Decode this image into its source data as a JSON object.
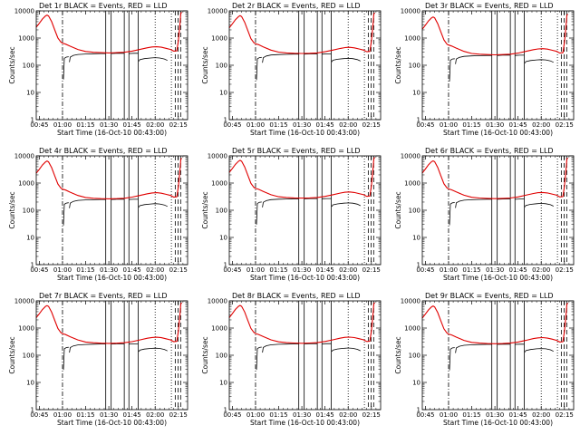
{
  "chart_data": {
    "type": "line",
    "layout": {
      "rows": 3,
      "cols": 3
    },
    "xlabel": "Start Time (16-Oct-10 00:43:00)",
    "ylabel": "Counts/sec",
    "x_tick_labels": [
      "00:45",
      "01:00",
      "01:15",
      "01:30",
      "01:45",
      "02:00",
      "02:15"
    ],
    "x_tick_minutes": [
      45,
      60,
      75,
      90,
      105,
      120,
      135
    ],
    "xlim_minutes": [
      43,
      141
    ],
    "y_scale": "log",
    "ylim": [
      1,
      10000
    ],
    "y_tick_labels": [
      "1",
      "10",
      "100",
      "1000",
      "10000"
    ],
    "vertical_markers": {
      "dash_dot": [
        60
      ],
      "solid": [
        88,
        91.5,
        100,
        103,
        109
      ],
      "dotted": [
        120,
        130.5
      ],
      "long_dash": [
        133,
        134.8,
        136.5
      ]
    },
    "panels": [
      {
        "title": "Det 1r BLACK = Events, RED = LLD",
        "scale": 1.0
      },
      {
        "title": "Det 2r BLACK = Events, RED = LLD",
        "scale": 0.95
      },
      {
        "title": "Det 3r BLACK = Events, RED = LLD",
        "scale": 0.85
      },
      {
        "title": "Det 4r BLACK = Events, RED = LLD",
        "scale": 0.92
      },
      {
        "title": "Det 5r BLACK = Events, RED = LLD",
        "scale": 0.98
      },
      {
        "title": "Det 6r BLACK = Events, RED = LLD",
        "scale": 0.94
      },
      {
        "title": "Det 7r BLACK = Events, RED = LLD",
        "scale": 0.96
      },
      {
        "title": "Det 8r BLACK = Events, RED = LLD",
        "scale": 0.97
      },
      {
        "title": "Det 9r BLACK = Events, RED = LLD",
        "scale": 0.93
      }
    ],
    "series": [
      {
        "name": "BLACK = Events",
        "color": "#000000",
        "segments": [
          [
            [
              60.6,
              30
            ],
            [
              61.2,
              180
            ],
            [
              62.5,
              200
            ],
            [
              64,
              205
            ]
          ],
          [
            [
              64.5,
              130
            ],
            [
              65,
              200
            ],
            [
              67,
              230
            ],
            [
              70,
              250
            ],
            [
              75,
              260
            ],
            [
              80,
              265
            ],
            [
              85,
              270
            ],
            [
              88,
              270
            ]
          ],
          [
            [
              91.5,
              270
            ],
            [
              95,
              275
            ],
            [
              100,
              275
            ]
          ],
          [
            [
              103,
              270
            ],
            [
              106,
              275
            ],
            [
              109,
              275
            ]
          ],
          [
            [
              109.5,
              140
            ],
            [
              110,
              160
            ],
            [
              113,
              175
            ],
            [
              117,
              185
            ],
            [
              120,
              190
            ],
            [
              123,
              185
            ],
            [
              126,
              170
            ],
            [
              128,
              150
            ]
          ]
        ]
      },
      {
        "name": "RED = LLD",
        "color": "#e00000",
        "segments": [
          [
            [
              43,
              2500
            ],
            [
              45,
              3500
            ],
            [
              47,
              5000
            ],
            [
              49,
              6500
            ],
            [
              50,
              7000
            ],
            [
              51,
              6500
            ],
            [
              53,
              4000
            ],
            [
              55,
              2000
            ],
            [
              57,
              1000
            ],
            [
              59,
              700
            ],
            [
              60,
              650
            ],
            [
              62,
              600
            ],
            [
              65,
              500
            ],
            [
              70,
              380
            ],
            [
              75,
              320
            ],
            [
              80,
              300
            ],
            [
              85,
              290
            ],
            [
              90,
              285
            ],
            [
              95,
              290
            ],
            [
              100,
              300
            ],
            [
              105,
              330
            ],
            [
              110,
              380
            ],
            [
              115,
              440
            ],
            [
              118,
              470
            ],
            [
              121,
              480
            ],
            [
              124,
              460
            ],
            [
              127,
              420
            ],
            [
              130,
              380
            ],
            [
              132,
              330
            ],
            [
              134,
              340
            ],
            [
              135,
              800
            ],
            [
              136,
              3000
            ],
            [
              136.6,
              8000
            ],
            [
              137.2,
              9000
            ]
          ]
        ]
      }
    ]
  }
}
